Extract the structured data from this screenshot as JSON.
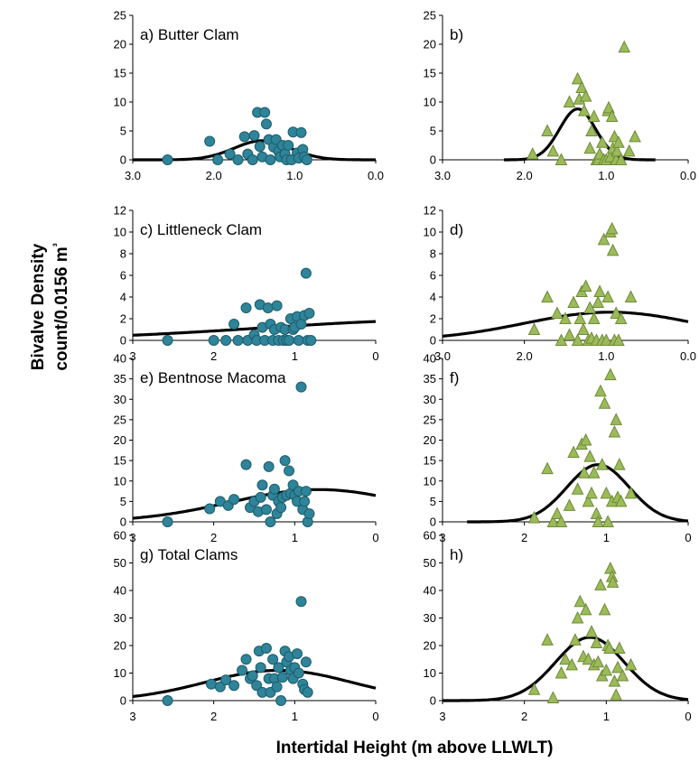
{
  "y_axis_label": [
    "Bivalve Density",
    "count/0.0156 m³"
  ],
  "x_axis_label": "Intertidal Height (m above LLWLT)",
  "colors": {
    "circle_fill": "#2e8499",
    "circle_stroke": "#1f5c6b",
    "triangle_fill": "#9bbb59",
    "triangle_stroke": "#6f8a3a",
    "curve": "#000000"
  },
  "chart_data": [
    {
      "panel": "a",
      "label": "a) Butter Clam",
      "type": "scatter",
      "marker": "circle",
      "xlim": [
        3.0,
        0.0
      ],
      "x_ticks": [
        "3.0",
        "2.0",
        "1.0",
        "0.0"
      ],
      "ylim": [
        0,
        25
      ],
      "y_ticks": [
        0,
        5,
        10,
        15,
        20,
        25
      ],
      "points": [
        [
          2.57,
          0
        ],
        [
          2.05,
          3.2
        ],
        [
          1.95,
          0
        ],
        [
          1.8,
          1
        ],
        [
          1.7,
          0
        ],
        [
          1.62,
          4
        ],
        [
          1.58,
          1
        ],
        [
          1.52,
          0
        ],
        [
          1.5,
          4.2
        ],
        [
          1.46,
          8.2
        ],
        [
          1.43,
          2.3
        ],
        [
          1.4,
          0.5
        ],
        [
          1.37,
          8.2
        ],
        [
          1.35,
          6.2
        ],
        [
          1.32,
          3.5
        ],
        [
          1.3,
          0
        ],
        [
          1.26,
          2.2
        ],
        [
          1.23,
          3.5
        ],
        [
          1.2,
          1.5
        ],
        [
          1.18,
          0.5
        ],
        [
          1.15,
          2.5
        ],
        [
          1.12,
          1
        ],
        [
          1.1,
          0
        ],
        [
          1.08,
          2.5
        ],
        [
          1.04,
          0
        ],
        [
          1.02,
          4.8
        ],
        [
          0.97,
          1.2
        ],
        [
          0.95,
          0.3
        ],
        [
          0.92,
          4.7
        ],
        [
          0.9,
          1.8
        ],
        [
          0.88,
          0.5
        ],
        [
          0.85,
          0
        ]
      ],
      "curve": {
        "peak_x": 1.4,
        "peak_y": 3.3,
        "sigma": 0.35,
        "x_range": [
          3.0,
          0.0
        ]
      }
    },
    {
      "panel": "b",
      "label": "b)",
      "type": "scatter",
      "marker": "triangle",
      "xlim": [
        3.0,
        0.0
      ],
      "x_ticks": [
        "3.0",
        "2.0",
        "1.0",
        "0.0"
      ],
      "ylim": [
        0,
        25
      ],
      "y_ticks": [
        0,
        5,
        10,
        15,
        20,
        25
      ],
      "points": [
        [
          1.9,
          1
        ],
        [
          1.72,
          5
        ],
        [
          1.65,
          1.5
        ],
        [
          1.55,
          0
        ],
        [
          1.45,
          10
        ],
        [
          1.35,
          14
        ],
        [
          1.33,
          10.5
        ],
        [
          1.3,
          12.5
        ],
        [
          1.27,
          8.5
        ],
        [
          1.25,
          11
        ],
        [
          1.2,
          2
        ],
        [
          1.18,
          5
        ],
        [
          1.15,
          7.5
        ],
        [
          1.12,
          0
        ],
        [
          1.1,
          0
        ],
        [
          1.08,
          1
        ],
        [
          1.05,
          3
        ],
        [
          1.03,
          0
        ],
        [
          1.0,
          0
        ],
        [
          0.98,
          8.5
        ],
        [
          0.97,
          9
        ],
        [
          0.95,
          0.5
        ],
        [
          0.93,
          7.5
        ],
        [
          0.92,
          2
        ],
        [
          0.9,
          4
        ],
        [
          0.88,
          0
        ],
        [
          0.87,
          1.5
        ],
        [
          0.85,
          3
        ],
        [
          0.82,
          0
        ],
        [
          0.78,
          19.5
        ],
        [
          0.72,
          1.5
        ],
        [
          0.65,
          4
        ]
      ],
      "curve": {
        "peak_x": 1.35,
        "peak_y": 8.8,
        "sigma": 0.22,
        "x_range": [
          2.25,
          0.4
        ]
      }
    },
    {
      "panel": "c",
      "label": "c) Littleneck Clam",
      "type": "scatter",
      "marker": "circle",
      "xlim": [
        3,
        0
      ],
      "x_ticks": [
        "3",
        "2",
        "1",
        "0"
      ],
      "ylim": [
        0,
        12
      ],
      "y_ticks": [
        0,
        2,
        4,
        6,
        8,
        10,
        12
      ],
      "points": [
        [
          2.57,
          0
        ],
        [
          2.0,
          0
        ],
        [
          1.85,
          0
        ],
        [
          1.75,
          1.5
        ],
        [
          1.7,
          0
        ],
        [
          1.6,
          3
        ],
        [
          1.58,
          0
        ],
        [
          1.5,
          0.5
        ],
        [
          1.47,
          0
        ],
        [
          1.43,
          3.3
        ],
        [
          1.4,
          1.2
        ],
        [
          1.37,
          0
        ],
        [
          1.33,
          3
        ],
        [
          1.3,
          1.5
        ],
        [
          1.27,
          0
        ],
        [
          1.25,
          1
        ],
        [
          1.22,
          3.2
        ],
        [
          1.2,
          0
        ],
        [
          1.17,
          1.2
        ],
        [
          1.14,
          0
        ],
        [
          1.12,
          1
        ],
        [
          1.1,
          0
        ],
        [
          1.07,
          0
        ],
        [
          1.05,
          2
        ],
        [
          1.02,
          1
        ],
        [
          1.0,
          1.2
        ],
        [
          0.97,
          2.2
        ],
        [
          0.95,
          0
        ],
        [
          0.92,
          1.5
        ],
        [
          0.88,
          2.3
        ],
        [
          0.86,
          6.2
        ],
        [
          0.84,
          0
        ],
        [
          0.82,
          2.5
        ],
        [
          0.8,
          0
        ]
      ],
      "curve": {
        "peak_x": -1.0,
        "peak_y": 1.9,
        "sigma": 2.4,
        "x_range": [
          3.0,
          0.0
        ]
      }
    },
    {
      "panel": "d",
      "label": "d)",
      "type": "scatter",
      "marker": "triangle",
      "xlim": [
        3.0,
        0.0
      ],
      "x_ticks": [
        "3.0",
        "2.0",
        "1.0",
        "0.0"
      ],
      "ylim": [
        0,
        12
      ],
      "y_ticks": [
        0,
        2,
        4,
        6,
        8,
        10,
        12
      ],
      "points": [
        [
          1.88,
          1
        ],
        [
          1.72,
          4
        ],
        [
          1.6,
          2.5
        ],
        [
          1.55,
          0
        ],
        [
          1.5,
          2
        ],
        [
          1.45,
          0.5
        ],
        [
          1.4,
          3.5
        ],
        [
          1.35,
          0
        ],
        [
          1.32,
          2
        ],
        [
          1.3,
          4.5
        ],
        [
          1.28,
          1
        ],
        [
          1.25,
          5
        ],
        [
          1.22,
          0
        ],
        [
          1.2,
          3
        ],
        [
          1.18,
          0.2
        ],
        [
          1.15,
          2
        ],
        [
          1.12,
          0
        ],
        [
          1.1,
          3.5
        ],
        [
          1.08,
          4.5
        ],
        [
          1.05,
          0
        ],
        [
          1.03,
          9.3
        ],
        [
          1.0,
          0
        ],
        [
          0.98,
          4
        ],
        [
          0.95,
          10
        ],
        [
          0.93,
          10.3
        ],
        [
          0.92,
          8.3
        ],
        [
          0.9,
          0
        ],
        [
          0.88,
          2.5
        ],
        [
          0.85,
          0
        ],
        [
          0.82,
          2
        ],
        [
          0.7,
          4
        ]
      ],
      "curve": {
        "peak_x": 0.95,
        "peak_y": 2.6,
        "sigma": 1.05,
        "x_range": [
          3.0,
          0.0
        ]
      }
    },
    {
      "panel": "e",
      "label": "e) Bentnose Macoma",
      "type": "scatter",
      "marker": "circle",
      "xlim": [
        3,
        0
      ],
      "x_ticks": [
        "3",
        "2",
        "1",
        "0"
      ],
      "ylim": [
        0,
        40
      ],
      "y_ticks": [
        0,
        5,
        10,
        15,
        20,
        25,
        30,
        35,
        40
      ],
      "points": [
        [
          2.57,
          0
        ],
        [
          2.05,
          3.2
        ],
        [
          1.92,
          5
        ],
        [
          1.82,
          4
        ],
        [
          1.75,
          5.5
        ],
        [
          1.6,
          14
        ],
        [
          1.55,
          3.5
        ],
        [
          1.5,
          5
        ],
        [
          1.45,
          2.5
        ],
        [
          1.42,
          6
        ],
        [
          1.4,
          9
        ],
        [
          1.35,
          3
        ],
        [
          1.32,
          13.5
        ],
        [
          1.3,
          0
        ],
        [
          1.27,
          6.5
        ],
        [
          1.25,
          8
        ],
        [
          1.22,
          2
        ],
        [
          1.2,
          5
        ],
        [
          1.17,
          3.5
        ],
        [
          1.15,
          6
        ],
        [
          1.12,
          15
        ],
        [
          1.1,
          6.5
        ],
        [
          1.07,
          12.5
        ],
        [
          1.05,
          7
        ],
        [
          1.02,
          9
        ],
        [
          1.0,
          6.5
        ],
        [
          0.97,
          5
        ],
        [
          0.95,
          7.5
        ],
        [
          0.92,
          33
        ],
        [
          0.9,
          3
        ],
        [
          0.88,
          5
        ],
        [
          0.86,
          7.5
        ],
        [
          0.84,
          0
        ],
        [
          0.82,
          2
        ]
      ],
      "curve": {
        "peak_x": 0.7,
        "peak_y": 7.9,
        "sigma": 1.1,
        "x_range": [
          3.0,
          0.0
        ]
      }
    },
    {
      "panel": "f",
      "label": "f)",
      "type": "scatter",
      "marker": "triangle",
      "xlim": [
        3,
        0
      ],
      "x_ticks": [
        "3",
        "2",
        "1",
        "0"
      ],
      "ylim": [
        0,
        40
      ],
      "y_ticks": [
        0,
        5,
        10,
        15,
        20,
        25,
        30,
        35,
        40
      ],
      "points": [
        [
          1.88,
          1
        ],
        [
          1.72,
          13
        ],
        [
          1.65,
          0
        ],
        [
          1.6,
          2
        ],
        [
          1.55,
          0
        ],
        [
          1.45,
          4
        ],
        [
          1.4,
          17
        ],
        [
          1.35,
          8
        ],
        [
          1.3,
          19
        ],
        [
          1.27,
          12
        ],
        [
          1.25,
          20
        ],
        [
          1.22,
          5
        ],
        [
          1.2,
          16
        ],
        [
          1.18,
          7
        ],
        [
          1.15,
          12
        ],
        [
          1.12,
          2
        ],
        [
          1.1,
          0
        ],
        [
          1.07,
          32
        ],
        [
          1.05,
          14
        ],
        [
          1.02,
          29
        ],
        [
          1.0,
          7
        ],
        [
          0.98,
          0
        ],
        [
          0.95,
          36
        ],
        [
          0.93,
          5
        ],
        [
          0.9,
          22
        ],
        [
          0.88,
          25
        ],
        [
          0.86,
          6
        ],
        [
          0.84,
          14
        ],
        [
          0.82,
          5
        ],
        [
          0.7,
          7
        ]
      ],
      "curve": {
        "peak_x": 1.1,
        "peak_y": 14,
        "sigma": 0.38,
        "x_range": [
          2.7,
          0.0
        ]
      }
    },
    {
      "panel": "g",
      "label": "g) Total Clams",
      "type": "scatter",
      "marker": "circle",
      "xlim": [
        3,
        0
      ],
      "x_ticks": [
        "3",
        "2",
        "1",
        "0"
      ],
      "ylim": [
        0,
        60
      ],
      "y_ticks": [
        0,
        10,
        20,
        30,
        40,
        50,
        60
      ],
      "points": [
        [
          2.57,
          0
        ],
        [
          2.03,
          6
        ],
        [
          1.92,
          5
        ],
        [
          1.85,
          7.5
        ],
        [
          1.75,
          5.5
        ],
        [
          1.65,
          11
        ],
        [
          1.6,
          15
        ],
        [
          1.55,
          8
        ],
        [
          1.52,
          9
        ],
        [
          1.47,
          5.5
        ],
        [
          1.44,
          18
        ],
        [
          1.42,
          12
        ],
        [
          1.4,
          3
        ],
        [
          1.35,
          19
        ],
        [
          1.32,
          8
        ],
        [
          1.3,
          3
        ],
        [
          1.27,
          15
        ],
        [
          1.25,
          8
        ],
        [
          1.22,
          5
        ],
        [
          1.2,
          12
        ],
        [
          1.17,
          0
        ],
        [
          1.15,
          8.5
        ],
        [
          1.12,
          18
        ],
        [
          1.1,
          14
        ],
        [
          1.07,
          16
        ],
        [
          1.05,
          11
        ],
        [
          1.02,
          8
        ],
        [
          1.0,
          12
        ],
        [
          0.97,
          17
        ],
        [
          0.95,
          10
        ],
        [
          0.92,
          36
        ],
        [
          0.9,
          6
        ],
        [
          0.88,
          4
        ],
        [
          0.86,
          14
        ],
        [
          0.84,
          3
        ]
      ],
      "curve": {
        "peak_x": 1.2,
        "peak_y": 11,
        "sigma": 0.9,
        "x_range": [
          3.0,
          0.0
        ]
      }
    },
    {
      "panel": "h",
      "label": "h)",
      "type": "scatter",
      "marker": "triangle",
      "xlim": [
        3,
        0
      ],
      "x_ticks": [
        "3",
        "2",
        "1",
        "0"
      ],
      "ylim": [
        0,
        60
      ],
      "y_ticks": [
        0,
        10,
        20,
        30,
        40,
        50,
        60
      ],
      "points": [
        [
          1.88,
          4
        ],
        [
          1.72,
          22
        ],
        [
          1.65,
          1
        ],
        [
          1.55,
          10
        ],
        [
          1.5,
          15
        ],
        [
          1.42,
          13
        ],
        [
          1.38,
          22
        ],
        [
          1.35,
          30
        ],
        [
          1.32,
          36
        ],
        [
          1.28,
          16
        ],
        [
          1.25,
          33
        ],
        [
          1.22,
          15
        ],
        [
          1.18,
          25
        ],
        [
          1.15,
          13
        ],
        [
          1.12,
          21
        ],
        [
          1.1,
          14
        ],
        [
          1.07,
          42
        ],
        [
          1.05,
          9
        ],
        [
          1.02,
          33
        ],
        [
          1.0,
          11
        ],
        [
          0.98,
          20
        ],
        [
          0.96,
          19
        ],
        [
          0.95,
          48
        ],
        [
          0.93,
          45
        ],
        [
          0.92,
          43
        ],
        [
          0.9,
          7
        ],
        [
          0.88,
          2
        ],
        [
          0.86,
          12
        ],
        [
          0.84,
          19
        ],
        [
          0.8,
          9
        ],
        [
          0.7,
          13
        ]
      ],
      "curve": {
        "peak_x": 1.2,
        "peak_y": 23,
        "sigma": 0.42,
        "x_range": [
          3.0,
          0.0
        ]
      }
    }
  ]
}
